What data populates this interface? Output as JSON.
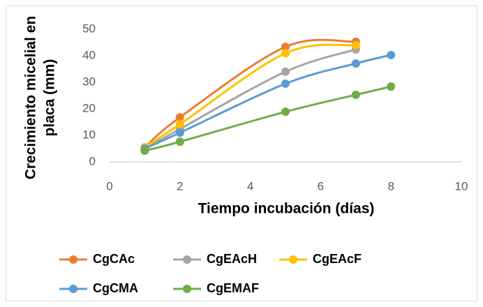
{
  "chart_data": {
    "type": "line",
    "xlabel": "Tiempo incubación (días)",
    "ylabel": [
      "Crecimiento micelial en",
      "placa (mm)"
    ],
    "xlim": [
      0,
      10
    ],
    "xticks": [
      0,
      2,
      4,
      6,
      8,
      10
    ],
    "ylim": [
      0,
      50
    ],
    "yticks": [
      0,
      10,
      20,
      30,
      40,
      50
    ],
    "series": [
      {
        "name": "CgCAc",
        "color": "#ED7D31",
        "x": [
          1,
          2,
          5,
          7
        ],
        "values": [
          5.5,
          16.8,
          43.4,
          45.3
        ]
      },
      {
        "name": "CgEAcH",
        "color": "#A5A5A5",
        "x": [
          1,
          2,
          5,
          7
        ],
        "values": [
          5,
          12.4,
          34,
          42.4
        ]
      },
      {
        "name": "CgEAcF",
        "color": "#FFC000",
        "x": [
          1,
          2,
          5,
          7
        ],
        "values": [
          5.5,
          14.2,
          41,
          44
        ]
      },
      {
        "name": "CgCMA",
        "color": "#5B9BD5",
        "x": [
          1,
          2,
          5,
          7,
          8
        ],
        "values": [
          5,
          11,
          29.5,
          37.1,
          40.3
        ]
      },
      {
        "name": "CgEMAF",
        "color": "#70AD47",
        "x": [
          1,
          2,
          5,
          7,
          8
        ],
        "values": [
          4.2,
          7.6,
          18.9,
          25.3,
          28.4
        ]
      }
    ]
  }
}
